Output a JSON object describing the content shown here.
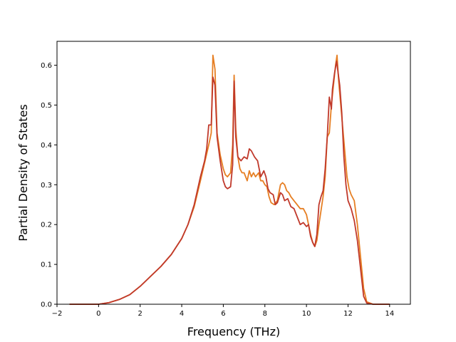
{
  "chart_data": {
    "type": "line",
    "title": "",
    "xlabel": "Frequency (THz)",
    "ylabel": "Partial Density of States",
    "xlim": [
      -2.0,
      15.0
    ],
    "ylim": [
      0.0,
      0.66
    ],
    "xticks": [
      -2,
      0,
      2,
      4,
      6,
      8,
      10,
      12,
      14
    ],
    "xtick_labels": [
      "−2",
      "0",
      "2",
      "4",
      "6",
      "8",
      "10",
      "12",
      "14"
    ],
    "yticks": [
      0.0,
      0.1,
      0.2,
      0.3,
      0.4,
      0.5,
      0.6
    ],
    "ytick_labels": [
      "0.0",
      "0.1",
      "0.2",
      "0.3",
      "0.4",
      "0.5",
      "0.6"
    ],
    "grid": false,
    "legend": "none",
    "series": [
      {
        "color": "#e67e22",
        "x": [
          -1.4,
          -0.5,
          0,
          0.5,
          1.0,
          1.5,
          2.0,
          2.5,
          3.0,
          3.5,
          4.0,
          4.3,
          4.6,
          4.9,
          5.1,
          5.3,
          5.42,
          5.5,
          5.6,
          5.7,
          5.85,
          6.0,
          6.1,
          6.2,
          6.35,
          6.45,
          6.52,
          6.6,
          6.7,
          6.8,
          6.9,
          7.0,
          7.15,
          7.25,
          7.35,
          7.45,
          7.55,
          7.7,
          7.8,
          7.9,
          8.0,
          8.1,
          8.2,
          8.3,
          8.45,
          8.6,
          8.75,
          8.85,
          8.95,
          9.05,
          9.15,
          9.25,
          9.4,
          9.55,
          9.7,
          9.85,
          10.0,
          10.1,
          10.2,
          10.3,
          10.4,
          10.5,
          10.6,
          10.7,
          10.8,
          10.9,
          11.0,
          11.1,
          11.2,
          11.3,
          11.4,
          11.47,
          11.55,
          11.65,
          11.75,
          11.85,
          11.95,
          12.05,
          12.15,
          12.3,
          12.45,
          12.6,
          12.75,
          12.9,
          13.2,
          14.0
        ],
        "values": [
          0,
          0,
          0,
          0.004,
          0.012,
          0.024,
          0.045,
          0.07,
          0.095,
          0.125,
          0.165,
          0.2,
          0.245,
          0.31,
          0.355,
          0.4,
          0.43,
          0.625,
          0.59,
          0.43,
          0.375,
          0.34,
          0.325,
          0.32,
          0.33,
          0.4,
          0.575,
          0.44,
          0.37,
          0.34,
          0.33,
          0.33,
          0.31,
          0.335,
          0.32,
          0.33,
          0.32,
          0.33,
          0.31,
          0.31,
          0.3,
          0.295,
          0.27,
          0.255,
          0.25,
          0.26,
          0.3,
          0.305,
          0.3,
          0.285,
          0.28,
          0.27,
          0.26,
          0.25,
          0.24,
          0.24,
          0.225,
          0.2,
          0.175,
          0.155,
          0.145,
          0.16,
          0.2,
          0.235,
          0.27,
          0.32,
          0.42,
          0.43,
          0.5,
          0.55,
          0.6,
          0.625,
          0.56,
          0.5,
          0.44,
          0.38,
          0.32,
          0.29,
          0.275,
          0.26,
          0.2,
          0.12,
          0.04,
          0.006,
          0,
          0
        ]
      },
      {
        "color": "#c0392b",
        "x": [
          -1.4,
          -0.5,
          0,
          0.5,
          1.0,
          1.5,
          2.0,
          2.5,
          3.0,
          3.5,
          4.0,
          4.3,
          4.6,
          4.9,
          5.1,
          5.2,
          5.3,
          5.42,
          5.5,
          5.6,
          5.7,
          5.85,
          6.0,
          6.1,
          6.2,
          6.35,
          6.45,
          6.52,
          6.6,
          6.7,
          6.85,
          7.0,
          7.15,
          7.25,
          7.35,
          7.5,
          7.65,
          7.8,
          7.95,
          8.05,
          8.15,
          8.25,
          8.4,
          8.5,
          8.6,
          8.75,
          8.85,
          8.95,
          9.1,
          9.25,
          9.4,
          9.55,
          9.7,
          9.85,
          10.0,
          10.1,
          10.2,
          10.3,
          10.4,
          10.5,
          10.6,
          10.7,
          10.8,
          10.9,
          11.0,
          11.1,
          11.2,
          11.25,
          11.35,
          11.45,
          11.5,
          11.6,
          11.7,
          11.8,
          11.9,
          12.0,
          12.15,
          12.3,
          12.45,
          12.6,
          12.75,
          12.9,
          13.2,
          14.0
        ],
        "values": [
          0,
          0,
          0,
          0.004,
          0.012,
          0.024,
          0.045,
          0.07,
          0.095,
          0.125,
          0.165,
          0.2,
          0.25,
          0.32,
          0.36,
          0.39,
          0.45,
          0.45,
          0.57,
          0.55,
          0.42,
          0.36,
          0.31,
          0.295,
          0.29,
          0.295,
          0.35,
          0.56,
          0.42,
          0.37,
          0.36,
          0.37,
          0.365,
          0.39,
          0.385,
          0.37,
          0.36,
          0.32,
          0.335,
          0.32,
          0.29,
          0.28,
          0.275,
          0.25,
          0.255,
          0.28,
          0.275,
          0.26,
          0.265,
          0.245,
          0.24,
          0.22,
          0.2,
          0.205,
          0.195,
          0.2,
          0.17,
          0.155,
          0.145,
          0.175,
          0.25,
          0.27,
          0.285,
          0.34,
          0.42,
          0.52,
          0.49,
          0.54,
          0.58,
          0.61,
          0.59,
          0.55,
          0.48,
          0.37,
          0.3,
          0.26,
          0.24,
          0.21,
          0.16,
          0.09,
          0.02,
          0.003,
          0,
          0
        ]
      }
    ]
  }
}
